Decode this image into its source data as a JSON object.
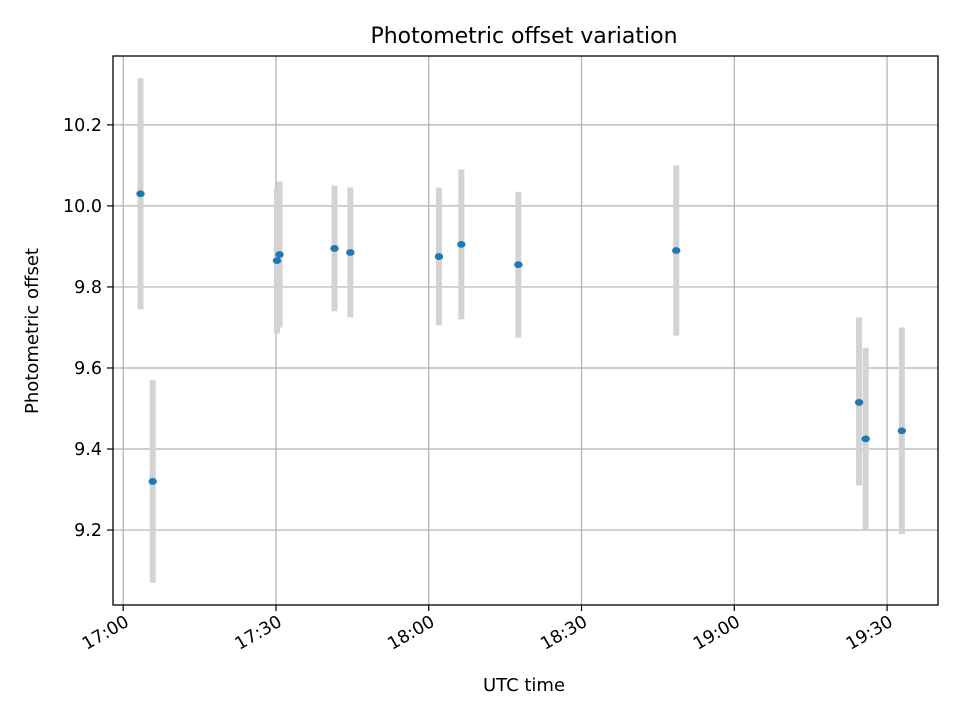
{
  "chart_data": {
    "type": "scatter",
    "title": "Photometric offset variation",
    "xlabel": "UTC time",
    "ylabel": "Photometric offset",
    "xlim": [
      "16:58",
      "19:40"
    ],
    "ylim": [
      9.015,
      10.37
    ],
    "xticks": [
      "17:00",
      "17:30",
      "18:00",
      "18:30",
      "19:00",
      "19:30"
    ],
    "yticks": [
      "9.2",
      "9.4",
      "9.6",
      "9.8",
      "10.0",
      "10.2"
    ],
    "grid": true,
    "colors": {
      "point": "#1f77b4",
      "errorbar": "#d3d3d3"
    },
    "points": [
      {
        "x": "17:03.4",
        "y": 10.03,
        "err_low": 9.745,
        "err_high": 10.315
      },
      {
        "x": "17:05.8",
        "y": 9.32,
        "err_low": 9.07,
        "err_high": 9.57
      },
      {
        "x": "17:30.2",
        "y": 9.865,
        "err_low": 9.685,
        "err_high": 10.045
      },
      {
        "x": "17:30.7",
        "y": 9.88,
        "err_low": 9.7,
        "err_high": 10.06
      },
      {
        "x": "17:41.5",
        "y": 9.895,
        "err_low": 9.74,
        "err_high": 10.05
      },
      {
        "x": "17:44.6",
        "y": 9.885,
        "err_low": 9.725,
        "err_high": 10.045
      },
      {
        "x": "18:02.0",
        "y": 9.875,
        "err_low": 9.705,
        "err_high": 10.045
      },
      {
        "x": "18:06.4",
        "y": 9.905,
        "err_low": 9.72,
        "err_high": 10.09
      },
      {
        "x": "18:17.6",
        "y": 9.855,
        "err_low": 9.675,
        "err_high": 10.035
      },
      {
        "x": "18:48.6",
        "y": 9.89,
        "err_low": 9.68,
        "err_high": 10.1
      },
      {
        "x": "19:24.5",
        "y": 9.515,
        "err_low": 9.31,
        "err_high": 9.725
      },
      {
        "x": "19:25.8",
        "y": 9.425,
        "err_low": 9.2,
        "err_high": 9.65
      },
      {
        "x": "19:32.9",
        "y": 9.445,
        "err_low": 9.19,
        "err_high": 9.7
      }
    ]
  }
}
